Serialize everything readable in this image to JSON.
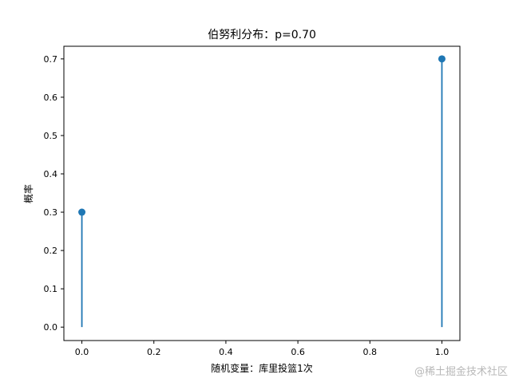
{
  "chart_data": {
    "type": "stem",
    "title": "伯努利分布：p=0.70",
    "xlabel": "随机变量：库里投篮1次",
    "ylabel": "概率",
    "x": [
      0,
      1
    ],
    "y": [
      0.3,
      0.7
    ],
    "xlim": [
      -0.05,
      1.05
    ],
    "ylim": [
      -0.035,
      0.733
    ],
    "xticks": [
      "0.0",
      "0.2",
      "0.4",
      "0.6",
      "0.8",
      "1.0"
    ],
    "yticks": [
      "0.0",
      "0.1",
      "0.2",
      "0.3",
      "0.4",
      "0.5",
      "0.6",
      "0.7"
    ],
    "color": "#1f77b4",
    "grid": false
  },
  "watermark": "@稀土掘金技术社区"
}
